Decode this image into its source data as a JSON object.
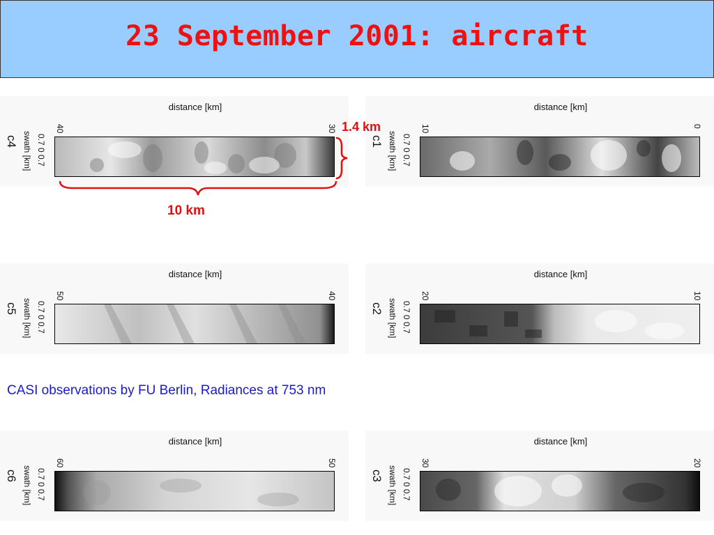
{
  "slide": {
    "title": "23 September 2001: aircraft",
    "caption": "CASI observations by FU Berlin, Radiances at 753 nm",
    "annotations": {
      "width": "10 km",
      "height": "1.4 km"
    }
  },
  "panels": [
    {
      "code": "c4",
      "xlabel": "distance [km]",
      "left_tick": "40",
      "right_tick": "30",
      "ylabel": "swath [km]",
      "yticks": "0.7   0   0.7"
    },
    {
      "code": "c1",
      "xlabel": "distance [km]",
      "left_tick": "10",
      "right_tick": "0",
      "ylabel": "swath [km]",
      "yticks": "0.7   0   0.7"
    },
    {
      "code": "c5",
      "xlabel": "distance [km]",
      "left_tick": "50",
      "right_tick": "40",
      "ylabel": "swath [km]",
      "yticks": "0.7   0   0.7"
    },
    {
      "code": "c2",
      "xlabel": "distance [km]",
      "left_tick": "20",
      "right_tick": "10",
      "ylabel": "swath [km]",
      "yticks": "0.7   0   0.7"
    },
    {
      "code": "c6",
      "xlabel": "distance [km]",
      "left_tick": "60",
      "right_tick": "50",
      "ylabel": "swath [km]",
      "yticks": "0.7   0   0.7"
    },
    {
      "code": "c3",
      "xlabel": "distance [km]",
      "left_tick": "30",
      "right_tick": "20",
      "ylabel": "swath [km]",
      "yticks": "0.7   0   0.7"
    }
  ]
}
